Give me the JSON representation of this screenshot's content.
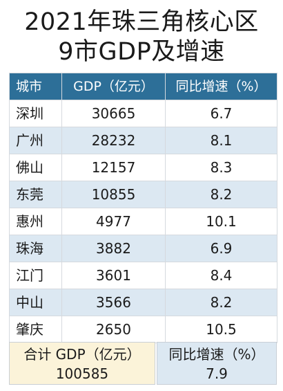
{
  "title_line1": "2021年珠三角核心区",
  "title_line2": "9市GDP及增速",
  "chart_data": {
    "type": "table",
    "columns": [
      "城市",
      "GDP（亿元）",
      "同比增速（%）"
    ],
    "rows": [
      {
        "city": "深圳",
        "gdp": "30665",
        "growth": "6.7"
      },
      {
        "city": "广州",
        "gdp": "28232",
        "growth": "8.1"
      },
      {
        "city": "佛山",
        "gdp": "12157",
        "growth": "8.3"
      },
      {
        "city": "东莞",
        "gdp": "10855",
        "growth": "8.2"
      },
      {
        "city": "惠州",
        "gdp": "4977",
        "growth": "10.1"
      },
      {
        "city": "珠海",
        "gdp": "3882",
        "growth": "6.9"
      },
      {
        "city": "江门",
        "gdp": "3601",
        "growth": "8.4"
      },
      {
        "city": "中山",
        "gdp": "3566",
        "growth": "8.2"
      },
      {
        "city": "肇庆",
        "gdp": "2650",
        "growth": "10.5"
      }
    ]
  },
  "footer": {
    "total_label": "合计 GDP（亿元）",
    "total_value": "100585",
    "growth_label": "同比增速（%）",
    "growth_value": "7.9"
  },
  "colors": {
    "header_bg": "#2d6f98",
    "stripe_bg": "#dce8f2",
    "total_bg": "#fbf3d9"
  }
}
